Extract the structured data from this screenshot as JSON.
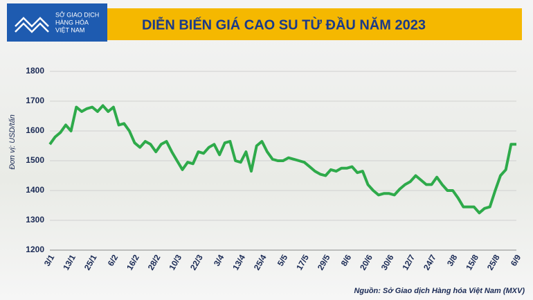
{
  "header": {
    "logo_lines": [
      "SỞ GIAO DỊCH",
      "HÀNG HÓA",
      "VIỆT NAM"
    ]
  },
  "chart_data": {
    "type": "line",
    "title": "DIỄN BIẾN GIÁ CAO SU TỪ ĐẦU NĂM 2023",
    "y_label": "Đơn vị: USD/tấn",
    "source": "Nguồn: Sở Giao dịch Hàng hóa Việt Nam (MXV)",
    "categories": [
      "3/1",
      null,
      null,
      null,
      "13/1",
      null,
      null,
      null,
      "25/1",
      null,
      null,
      null,
      "6/2",
      null,
      null,
      null,
      "16/2",
      null,
      null,
      null,
      "28/2",
      null,
      null,
      null,
      "10/3",
      null,
      null,
      null,
      "22/3",
      null,
      null,
      null,
      "3/4",
      null,
      null,
      null,
      "13/4",
      null,
      null,
      null,
      "25/4",
      null,
      null,
      null,
      "5/5",
      null,
      null,
      null,
      "17/5",
      null,
      null,
      null,
      "29/5",
      null,
      null,
      null,
      "8/6",
      null,
      null,
      null,
      "20/6",
      null,
      null,
      null,
      "30/6",
      null,
      null,
      null,
      "12/7",
      null,
      null,
      null,
      "24/7",
      null,
      null,
      null,
      "3/8",
      null,
      null,
      null,
      "15/8",
      null,
      null,
      null,
      "25/8",
      null,
      null,
      null,
      "6/9"
    ],
    "series": [
      {
        "name": "Giá cao su",
        "color": "#2eaa4a",
        "values": [
          1555,
          1580,
          1595,
          1620,
          1600,
          1680,
          1665,
          1675,
          1680,
          1665,
          1685,
          1665,
          1680,
          1620,
          1625,
          1600,
          1560,
          1545,
          1565,
          1555,
          1530,
          1555,
          1565,
          1530,
          1500,
          1470,
          1495,
          1490,
          1530,
          1525,
          1545,
          1555,
          1520,
          1560,
          1565,
          1500,
          1495,
          1530,
          1465,
          1550,
          1565,
          1530,
          1505,
          1500,
          1500,
          1510,
          1505,
          1500,
          1495,
          1480,
          1465,
          1455,
          1450,
          1470,
          1465,
          1475,
          1475,
          1480,
          1460,
          1465,
          1420,
          1400,
          1385,
          1390,
          1390,
          1385,
          1405,
          1420,
          1430,
          1450,
          1435,
          1420,
          1420,
          1445,
          1420,
          1400,
          1400,
          1375,
          1345,
          1345,
          1345,
          1325,
          1340,
          1345,
          1400,
          1450,
          1470,
          1555,
          1555
        ]
      }
    ],
    "ylim": [
      1200,
      1800
    ],
    "yticks": [
      1200,
      1300,
      1400,
      1500,
      1600,
      1700,
      1800
    ],
    "grid": true
  }
}
